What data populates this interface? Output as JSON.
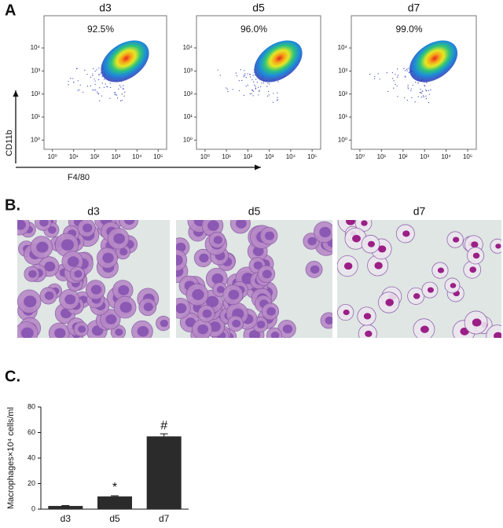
{
  "panels": {
    "a": "A",
    "b": "B.",
    "c": "C."
  },
  "flow_axes": {
    "xlabel": "F4/80",
    "ylabel": "CD11b"
  },
  "chart_data": [
    {
      "type": "density",
      "title": "d3",
      "annotation": "92.5%",
      "log_scale": true,
      "xlim": [
        0.4,
        250000
      ],
      "ylim": [
        0.4,
        250000
      ],
      "xticks": [
        {
          "value": 1,
          "label": "10⁰"
        },
        {
          "value": 10,
          "label": "10¹"
        },
        {
          "value": 100,
          "label": "10²"
        },
        {
          "value": 1000,
          "label": "10³"
        },
        {
          "value": 10000,
          "label": "10⁴"
        },
        {
          "value": 100000,
          "label": "10⁵"
        }
      ],
      "yticks": [
        {
          "value": 1,
          "label": "10⁰"
        },
        {
          "value": 10,
          "label": "10¹"
        },
        {
          "value": 100,
          "label": "10²"
        },
        {
          "value": 1000,
          "label": "10³"
        },
        {
          "value": 10000,
          "label": "10⁴"
        }
      ]
    },
    {
      "type": "density",
      "title": "d5",
      "annotation": "96.0%",
      "log_scale": true,
      "xlim": [
        0.4,
        250000
      ],
      "ylim": [
        0.4,
        250000
      ],
      "xticks": [
        {
          "value": 1,
          "label": "10⁰"
        },
        {
          "value": 10,
          "label": "10¹"
        },
        {
          "value": 100,
          "label": "10²"
        },
        {
          "value": 1000,
          "label": "10³"
        },
        {
          "value": 10000,
          "label": "10⁴"
        },
        {
          "value": 100000,
          "label": "10⁵"
        }
      ],
      "yticks": [
        {
          "value": 1,
          "label": "10⁰"
        },
        {
          "value": 10,
          "label": "10¹"
        },
        {
          "value": 100,
          "label": "10²"
        },
        {
          "value": 1000,
          "label": "10³"
        },
        {
          "value": 10000,
          "label": "10⁴"
        }
      ]
    },
    {
      "type": "density",
      "title": "d7",
      "annotation": "99.0%",
      "log_scale": true,
      "xlim": [
        0.4,
        250000
      ],
      "ylim": [
        0.4,
        250000
      ],
      "xticks": [
        {
          "value": 1,
          "label": "10⁰"
        },
        {
          "value": 10,
          "label": "10¹"
        },
        {
          "value": 100,
          "label": "10²"
        },
        {
          "value": 1000,
          "label": "10³"
        },
        {
          "value": 10000,
          "label": "10⁴"
        },
        {
          "value": 100000,
          "label": "10⁵"
        }
      ],
      "yticks": [
        {
          "value": 1,
          "label": "10⁰"
        },
        {
          "value": 10,
          "label": "10¹"
        },
        {
          "value": 100,
          "label": "10²"
        },
        {
          "value": 1000,
          "label": "10³"
        },
        {
          "value": 10000,
          "label": "10⁴"
        }
      ]
    },
    {
      "type": "bar",
      "ylabel": "Macrophages×10⁴ cells/ml",
      "categories": [
        "d3",
        "d5",
        "d7"
      ],
      "values": [
        2.5,
        10,
        57
      ],
      "errors": [
        0.3,
        0.5,
        2
      ],
      "annotations": [
        null,
        "*",
        "#"
      ],
      "color": "#2b2b2b",
      "ylim": [
        0,
        80
      ],
      "yticks": [
        0,
        20,
        40,
        60,
        80
      ]
    }
  ],
  "images": [
    {
      "label": "d3"
    },
    {
      "label": "d5"
    },
    {
      "label": "d7"
    }
  ]
}
